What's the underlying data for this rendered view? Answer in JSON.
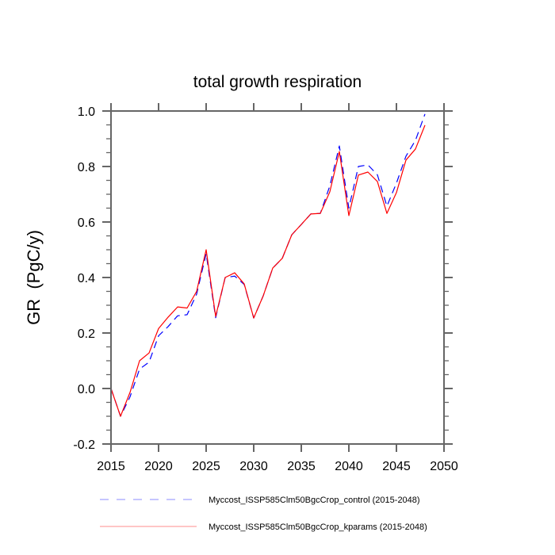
{
  "chart_data": {
    "type": "line",
    "title": "total growth respiration",
    "xlabel": "",
    "ylabel": "GR  (PgC/y)",
    "xlim": [
      2015,
      2050
    ],
    "ylim": [
      -0.2,
      1.0
    ],
    "xticks": [
      2015,
      2020,
      2025,
      2030,
      2035,
      2040,
      2045,
      2050
    ],
    "xtick_labels": [
      "2015",
      "2020",
      "2025",
      "2030",
      "2035",
      "2040",
      "2045",
      "2050"
    ],
    "yticks": [
      -0.2,
      0.0,
      0.2,
      0.4,
      0.6,
      0.8,
      1.0
    ],
    "ytick_labels": [
      "-0.2",
      "0.0",
      "0.2",
      "0.4",
      "0.6",
      "0.8",
      "1.0"
    ],
    "grid": false,
    "legend_position": "bottom",
    "x": [
      2015,
      2016,
      2017,
      2018,
      2019,
      2020,
      2021,
      2022,
      2023,
      2024,
      2025,
      2026,
      2027,
      2028,
      2029,
      2030,
      2031,
      2032,
      2033,
      2034,
      2035,
      2036,
      2037,
      2038,
      2039,
      2040,
      2041,
      2042,
      2043,
      2044,
      2045,
      2046,
      2047,
      2048
    ],
    "series": [
      {
        "name": "Myccost_ISSP585Clm50BgcCrop_control (2015-2048)",
        "color": "#0000ff",
        "style": "dashed",
        "values": [
          0.0,
          -0.1,
          -0.03,
          0.07,
          0.095,
          0.19,
          0.223,
          0.262,
          0.266,
          0.34,
          0.486,
          0.255,
          0.4,
          0.405,
          0.375,
          0.254,
          0.334,
          0.434,
          0.469,
          0.554,
          0.591,
          0.629,
          0.631,
          0.73,
          0.874,
          0.65,
          0.8,
          0.806,
          0.77,
          0.657,
          0.74,
          0.837,
          0.894,
          0.989
        ]
      },
      {
        "name": "Myccost_ISSP585Clm50BgcCrop_kparams (2015-2048)",
        "color": "#ff0000",
        "style": "solid",
        "values": [
          0.0,
          -0.1,
          -0.014,
          0.1,
          0.128,
          0.216,
          0.257,
          0.294,
          0.29,
          0.35,
          0.5,
          0.26,
          0.4,
          0.417,
          0.377,
          0.254,
          0.334,
          0.434,
          0.469,
          0.554,
          0.591,
          0.629,
          0.631,
          0.709,
          0.854,
          0.623,
          0.769,
          0.78,
          0.746,
          0.631,
          0.706,
          0.823,
          0.863,
          0.949
        ]
      }
    ]
  }
}
